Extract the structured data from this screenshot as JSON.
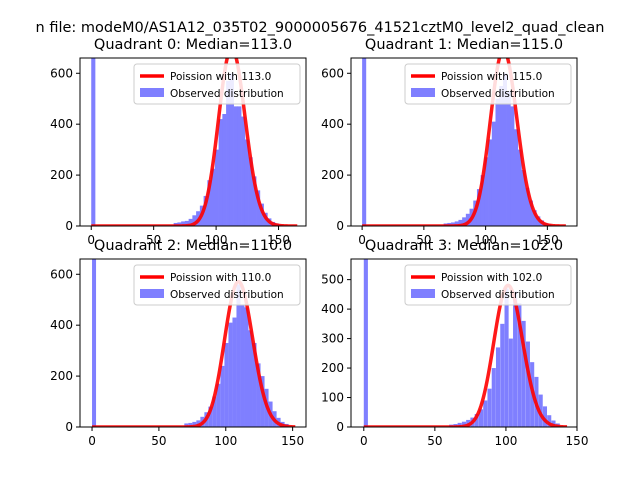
{
  "figure": {
    "suptitle": "n file: modeM0/AS1A12_035T02_9000005676_41521cztM0_level2_quad_clean",
    "colors": {
      "poisson": "#ff0000",
      "observed": "#7f7fff",
      "spine": "#000000"
    },
    "legend_position": "upper-right"
  },
  "chart_data": [
    {
      "type": "bar",
      "title": "Quadrant 0: Median=113.0",
      "xlabel": "",
      "ylabel": "",
      "xlim": [
        -9,
        172
      ],
      "ylim": [
        0,
        660
      ],
      "xticks": [
        0,
        50,
        100,
        150
      ],
      "yticks": [
        0,
        200,
        400,
        600
      ],
      "bin_width": 3.3,
      "series": [
        {
          "name": "Poission with 113.0",
          "kind": "line",
          "mu": 113.0,
          "scale": 3.3,
          "x_range": [
            0,
            165
          ]
        },
        {
          "name": "Observed distribution",
          "kind": "histogram",
          "bins": [
            [
              0,
              660
            ],
            [
              66,
              12
            ],
            [
              69,
              14
            ],
            [
              72,
              18
            ],
            [
              75,
              20
            ],
            [
              78,
              28
            ],
            [
              81,
              42
            ],
            [
              84,
              58
            ],
            [
              87,
              80
            ],
            [
              90,
              118
            ],
            [
              93,
              180
            ],
            [
              96,
              225
            ],
            [
              99,
              300
            ],
            [
              102,
              420
            ],
            [
              105,
              440
            ],
            [
              108,
              570
            ],
            [
              111,
              600
            ],
            [
              114,
              470
            ],
            [
              117,
              470
            ],
            [
              120,
              430
            ],
            [
              123,
              340
            ],
            [
              126,
              270
            ],
            [
              129,
              195
            ],
            [
              132,
              140
            ],
            [
              135,
              88
            ],
            [
              138,
              52
            ],
            [
              141,
              30
            ],
            [
              144,
              16
            ],
            [
              147,
              10
            ],
            [
              150,
              6
            ]
          ]
        }
      ]
    },
    {
      "type": "bar",
      "title": "Quadrant 1: Median=115.0",
      "xlabel": "",
      "ylabel": "",
      "xlim": [
        -9,
        174
      ],
      "ylim": [
        0,
        660
      ],
      "xticks": [
        0,
        50,
        100,
        150
      ],
      "yticks": [
        0,
        200,
        400,
        600
      ],
      "bin_width": 3.3,
      "series": [
        {
          "name": "Poission with 115.0",
          "kind": "line",
          "mu": 115.0,
          "scale": 3.3,
          "x_range": [
            0,
            165
          ]
        },
        {
          "name": "Observed distribution",
          "kind": "histogram",
          "bins": [
            [
              0,
              660
            ],
            [
              66,
              10
            ],
            [
              69,
              12
            ],
            [
              72,
              14
            ],
            [
              75,
              18
            ],
            [
              78,
              24
            ],
            [
              81,
              34
            ],
            [
              84,
              48
            ],
            [
              87,
              68
            ],
            [
              90,
              100
            ],
            [
              93,
              145
            ],
            [
              96,
              200
            ],
            [
              99,
              270
            ],
            [
              102,
              340
            ],
            [
              105,
              410
            ],
            [
              108,
              500
            ],
            [
              111,
              550
            ],
            [
              114,
              600
            ],
            [
              117,
              530
            ],
            [
              120,
              470
            ],
            [
              123,
              380
            ],
            [
              126,
              300
            ],
            [
              129,
              220
            ],
            [
              132,
              150
            ],
            [
              135,
              100
            ],
            [
              138,
              62
            ],
            [
              141,
              38
            ],
            [
              144,
              22
            ],
            [
              147,
              12
            ],
            [
              150,
              8
            ]
          ]
        }
      ]
    },
    {
      "type": "bar",
      "title": "Quadrant 2: Median=110.0",
      "xlabel": "",
      "ylabel": "",
      "xlim": [
        -9,
        160
      ],
      "ylim": [
        0,
        660
      ],
      "xticks": [
        0,
        50,
        100,
        150
      ],
      "yticks": [
        0,
        200,
        400,
        600
      ],
      "bin_width": 3.0,
      "series": [
        {
          "name": "Poission with 110.0",
          "kind": "line",
          "mu": 110.0,
          "scale": 3.0,
          "x_range": [
            0,
            152
          ]
        },
        {
          "name": "Observed distribution",
          "kind": "histogram",
          "bins": [
            [
              0,
              660
            ],
            [
              69,
              14
            ],
            [
              72,
              16
            ],
            [
              75,
              20
            ],
            [
              78,
              26
            ],
            [
              81,
              40
            ],
            [
              84,
              58
            ],
            [
              87,
              80
            ],
            [
              90,
              120
            ],
            [
              93,
              170
            ],
            [
              96,
              240
            ],
            [
              99,
              330
            ],
            [
              102,
              410
            ],
            [
              105,
              430
            ],
            [
              108,
              560
            ],
            [
              111,
              480
            ],
            [
              114,
              470
            ],
            [
              117,
              380
            ],
            [
              120,
              330
            ],
            [
              123,
              250
            ],
            [
              126,
              200
            ],
            [
              129,
              150
            ],
            [
              132,
              100
            ],
            [
              135,
              62
            ],
            [
              138,
              36
            ],
            [
              141,
              20
            ],
            [
              144,
              12
            ]
          ]
        }
      ]
    },
    {
      "type": "bar",
      "title": "Quadrant 3: Median=102.0",
      "xlabel": "",
      "ylabel": "",
      "xlim": [
        -9,
        150
      ],
      "ylim": [
        0,
        570
      ],
      "xticks": [
        0,
        50,
        100,
        150
      ],
      "yticks": [
        0,
        100,
        200,
        300,
        400,
        500
      ],
      "bin_width": 2.9,
      "series": [
        {
          "name": "Poission with 102.0",
          "kind": "line",
          "mu": 102.0,
          "scale": 2.9,
          "x_range": [
            0,
            143
          ]
        },
        {
          "name": "Observed distribution",
          "kind": "histogram",
          "bins": [
            [
              0,
              570
            ],
            [
              60,
              8
            ],
            [
              63,
              10
            ],
            [
              66,
              14
            ],
            [
              69,
              18
            ],
            [
              72,
              24
            ],
            [
              75,
              32
            ],
            [
              78,
              44
            ],
            [
              81,
              60
            ],
            [
              84,
              90
            ],
            [
              87,
              130
            ],
            [
              90,
              200
            ],
            [
              93,
              270
            ],
            [
              96,
              350
            ],
            [
              99,
              470
            ],
            [
              102,
              300
            ],
            [
              105,
              460
            ],
            [
              108,
              420
            ],
            [
              111,
              360
            ],
            [
              114,
              290
            ],
            [
              117,
              220
            ],
            [
              120,
              170
            ],
            [
              123,
              110
            ],
            [
              126,
              70
            ],
            [
              129,
              40
            ],
            [
              132,
              22
            ],
            [
              135,
              12
            ]
          ]
        }
      ]
    }
  ]
}
